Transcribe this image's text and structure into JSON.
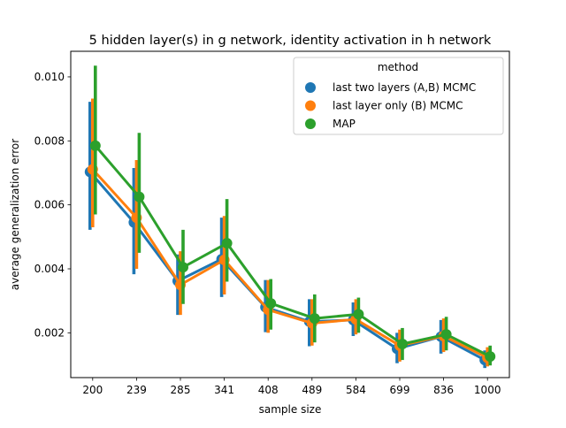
{
  "chart_data": {
    "type": "line",
    "title": "5 hidden layer(s) in g network, identity activation in h network",
    "xlabel": "sample size",
    "ylabel": "average generalization error",
    "categories": [
      "200",
      "239",
      "285",
      "341",
      "408",
      "489",
      "584",
      "699",
      "836",
      "1000"
    ],
    "ylim": [
      0.0006,
      0.0108
    ],
    "yticks": [
      0.002,
      0.004,
      0.006,
      0.008,
      0.01
    ],
    "ytick_labels": [
      "0.002",
      "0.004",
      "0.006",
      "0.008",
      "0.010"
    ],
    "grid": false,
    "legend": {
      "title": "method",
      "placement": "top-right"
    },
    "series": [
      {
        "name": "last two layers (A,B) MCMC",
        "color": "#1f77b4",
        "values": [
          0.00703,
          0.00545,
          0.00362,
          0.0043,
          0.0028,
          0.00235,
          0.0024,
          0.0015,
          0.00188,
          0.00115
        ],
        "err_low": [
          0.00522,
          0.00383,
          0.00256,
          0.00312,
          0.00202,
          0.00158,
          0.0019,
          0.00105,
          0.00135,
          0.0009
        ],
        "err_high": [
          0.00922,
          0.00715,
          0.00445,
          0.0056,
          0.00365,
          0.00305,
          0.00295,
          0.002,
          0.0024,
          0.00145
        ]
      },
      {
        "name": "last layer only (B) MCMC",
        "color": "#ff7f0e",
        "values": [
          0.00711,
          0.0056,
          0.0035,
          0.00428,
          0.00272,
          0.0023,
          0.00242,
          0.0016,
          0.0019,
          0.00122
        ],
        "err_low": [
          0.0053,
          0.004,
          0.00256,
          0.0032,
          0.002,
          0.0016,
          0.00195,
          0.0011,
          0.0014,
          0.00095
        ],
        "err_high": [
          0.00932,
          0.0074,
          0.00455,
          0.00565,
          0.00365,
          0.00305,
          0.00305,
          0.0021,
          0.00245,
          0.00155
        ]
      },
      {
        "name": "MAP",
        "color": "#2ca02c",
        "values": [
          0.00785,
          0.00625,
          0.00405,
          0.0048,
          0.00292,
          0.00245,
          0.00258,
          0.00165,
          0.00195,
          0.00126
        ],
        "err_low": [
          0.0057,
          0.0045,
          0.0029,
          0.0036,
          0.0021,
          0.0017,
          0.002,
          0.00115,
          0.00145,
          0.00098
        ],
        "err_high": [
          0.01035,
          0.00825,
          0.00522,
          0.00618,
          0.00368,
          0.0032,
          0.0031,
          0.00215,
          0.0025,
          0.0016
        ]
      }
    ]
  }
}
